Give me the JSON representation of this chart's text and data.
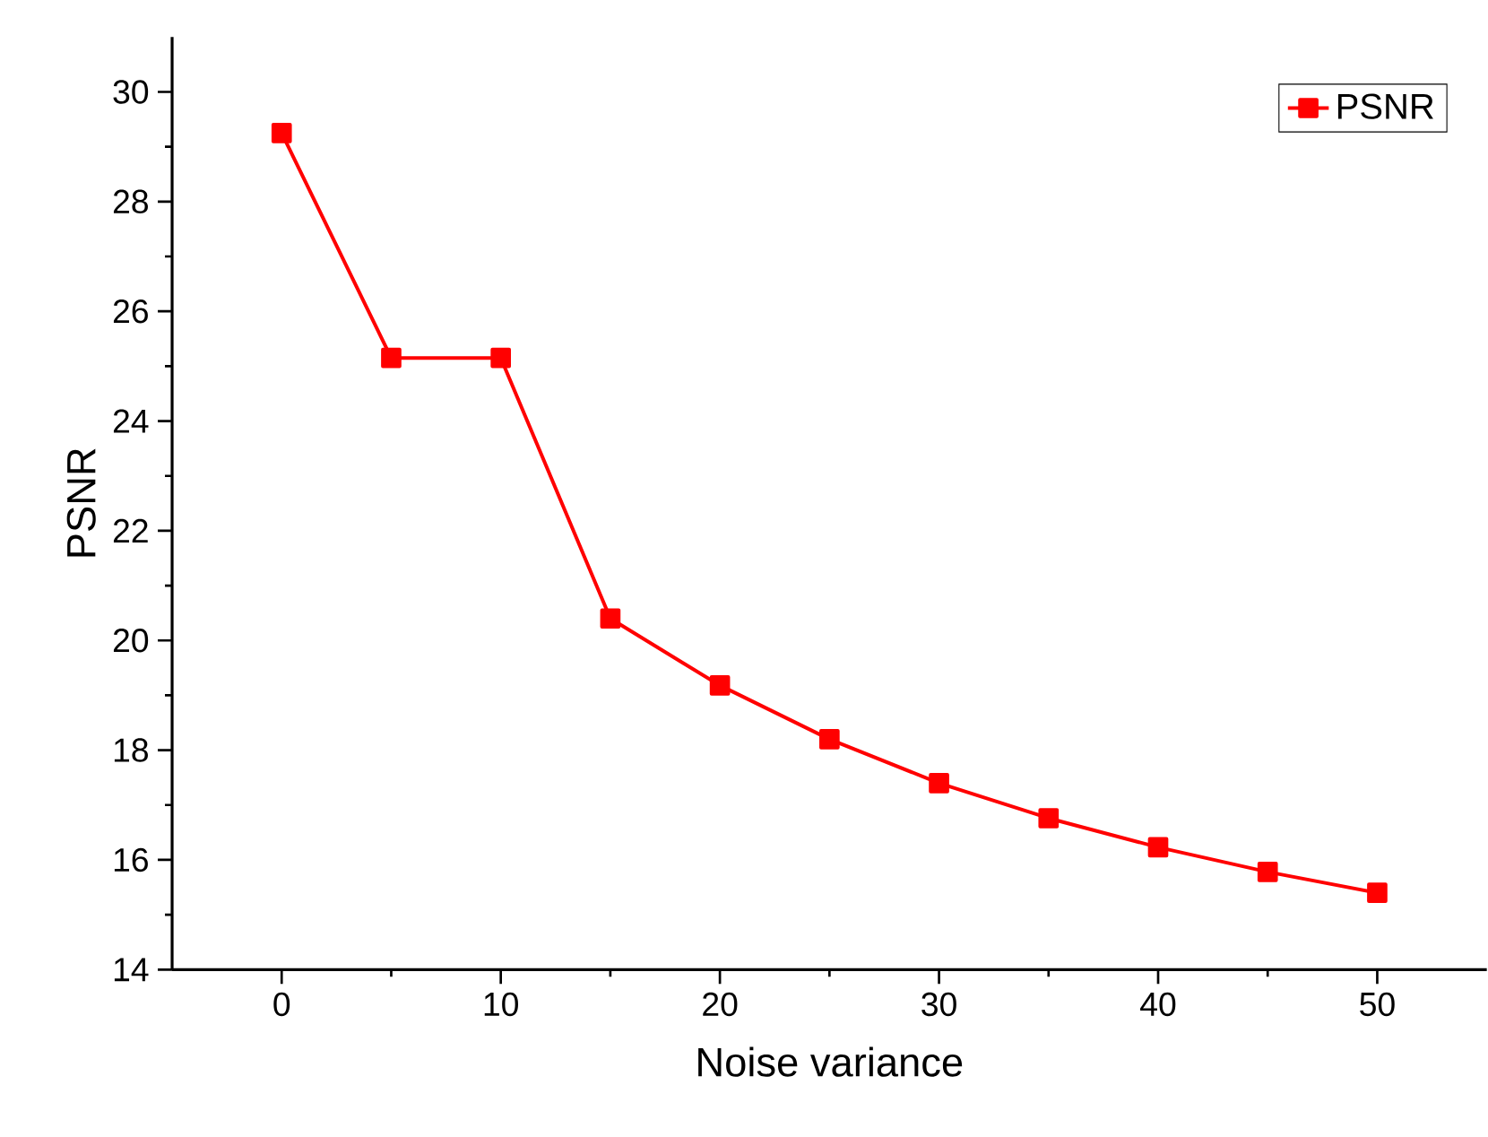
{
  "chart_data": {
    "type": "line",
    "xlabel": "Noise variance",
    "ylabel": "PSNR",
    "x": [
      0,
      5,
      10,
      15,
      20,
      25,
      30,
      35,
      40,
      45,
      50
    ],
    "series": [
      {
        "name": "PSNR",
        "color": "#ff0000",
        "values": [
          29.25,
          25.15,
          25.15,
          20.4,
          19.18,
          18.2,
          17.4,
          16.76,
          16.23,
          15.78,
          15.4
        ]
      }
    ],
    "xlim": [
      -5,
      55
    ],
    "ylim": [
      14,
      31
    ],
    "xticks": [
      0,
      10,
      20,
      30,
      40,
      50
    ],
    "yticks": [
      14,
      16,
      18,
      20,
      22,
      24,
      26,
      28,
      30
    ],
    "marker": "square",
    "line_style": "solid",
    "legend": "top right",
    "grid": false
  }
}
